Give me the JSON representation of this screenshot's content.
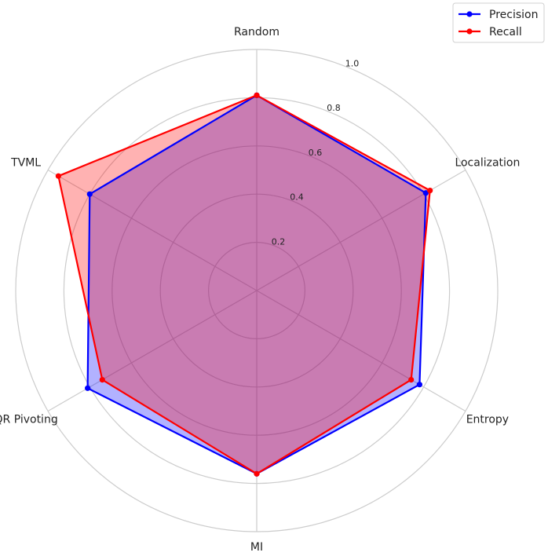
{
  "chart_data": {
    "type": "radar",
    "axes": [
      "Random",
      "Localization",
      "Entropy",
      "MI",
      "QR Pivoting",
      "TVML"
    ],
    "rlim": [
      0,
      1.0
    ],
    "rticks": [
      "0.2",
      "0.4",
      "0.6",
      "0.8",
      "1.0"
    ],
    "grid": true,
    "legend_position": "top-right",
    "series": [
      {
        "name": "Precision",
        "color": "#0000ff",
        "values": [
          0.81,
          0.81,
          0.78,
          0.76,
          0.81,
          0.8
        ]
      },
      {
        "name": "Recall",
        "color": "#ff0000",
        "values": [
          0.81,
          0.83,
          0.74,
          0.76,
          0.74,
          0.95
        ]
      }
    ]
  }
}
